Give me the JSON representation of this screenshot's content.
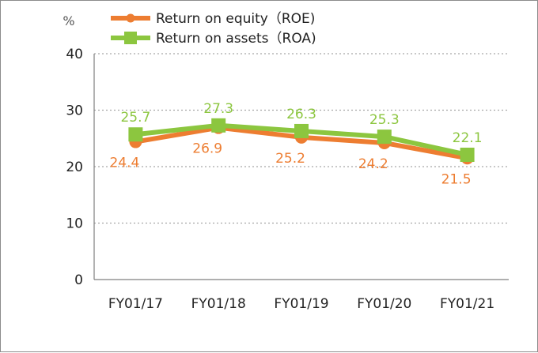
{
  "chart_data": {
    "type": "line",
    "unit": "%",
    "categories": [
      "FY01/17",
      "FY01/18",
      "FY01/19",
      "FY01/20",
      "FY01/21"
    ],
    "ylim": [
      0,
      40
    ],
    "yticks": [
      "0",
      "10",
      "20",
      "30",
      "40"
    ],
    "grid": true,
    "legend_position": "top",
    "series": [
      {
        "name": "Return on equity（ROE)",
        "color": "#ed7d31",
        "marker": "circle",
        "values": [
          24.4,
          26.9,
          25.2,
          24.2,
          21.5
        ],
        "labels": [
          "24.4",
          "26.9",
          "25.2",
          "24.2",
          "21.5"
        ],
        "label_position": "below"
      },
      {
        "name": "Return on assets（ROA)",
        "color": "#8cc63f",
        "marker": "square",
        "values": [
          25.7,
          27.3,
          26.3,
          25.3,
          22.1
        ],
        "labels": [
          "25.7",
          "27.3",
          "26.3",
          "25.3",
          "22.1"
        ],
        "label_position": "above"
      }
    ]
  }
}
